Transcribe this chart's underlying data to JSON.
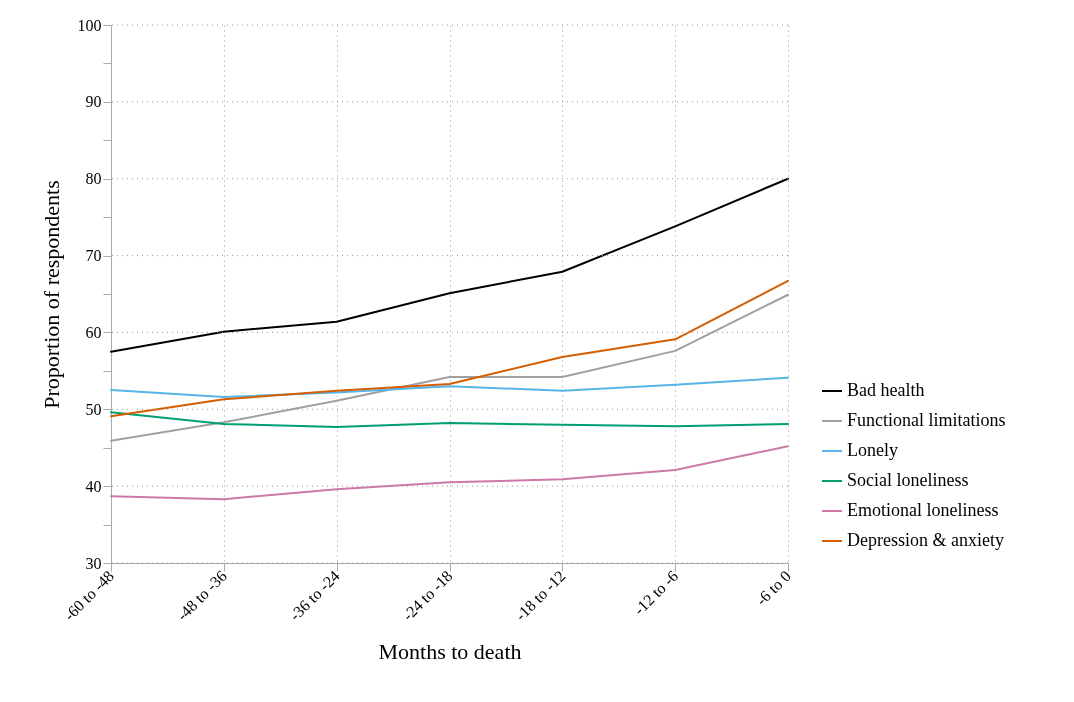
{
  "chart_data": {
    "type": "line",
    "xlabel": "Months to death",
    "ylabel": "Proportion of respondents",
    "categories": [
      "-60 to -48",
      "-48 to -36",
      "-36 to -24",
      "-24 to -18",
      "-18 to -12",
      "-12 to -6",
      "-6 to 0"
    ],
    "series": [
      {
        "name": "Bad health",
        "color": "#000000",
        "values": [
          57.5,
          60.1,
          61.4,
          65.1,
          67.9,
          73.8,
          80.0
        ]
      },
      {
        "name": "Functional limitations",
        "color": "#a0a0a0",
        "values": [
          45.9,
          48.3,
          51.1,
          54.2,
          54.2,
          57.6,
          64.9
        ]
      },
      {
        "name": "Lonely",
        "color": "#56b4e9",
        "values": [
          52.5,
          51.6,
          52.2,
          53.0,
          52.4,
          53.2,
          54.1
        ]
      },
      {
        "name": "Social loneliness",
        "color": "#009e73",
        "values": [
          49.6,
          48.1,
          47.7,
          48.2,
          48.0,
          47.8,
          48.1
        ]
      },
      {
        "name": "Emotional loneliness",
        "color": "#cc79a7",
        "values": [
          38.7,
          38.3,
          39.6,
          40.5,
          40.9,
          42.1,
          45.2
        ]
      },
      {
        "name": "Depression & anxiety",
        "color": "#d55e00",
        "values": [
          49.1,
          51.3,
          52.4,
          53.3,
          56.8,
          59.1,
          66.7
        ]
      }
    ],
    "ylim": [
      30,
      100
    ],
    "yticks": [
      30,
      {
        "value": 35,
        "label": null
      },
      40,
      {
        "value": 45,
        "label": null
      },
      50,
      {
        "value": 55,
        "label": null
      },
      60,
      {
        "value": 65,
        "label": null
      },
      70,
      {
        "value": 75,
        "label": null
      },
      80,
      {
        "value": 85,
        "label": null
      },
      90,
      {
        "value": 95,
        "label": null
      },
      100
    ],
    "grid": true,
    "legend": "right",
    "marker": "none",
    "line_style": "solid"
  }
}
